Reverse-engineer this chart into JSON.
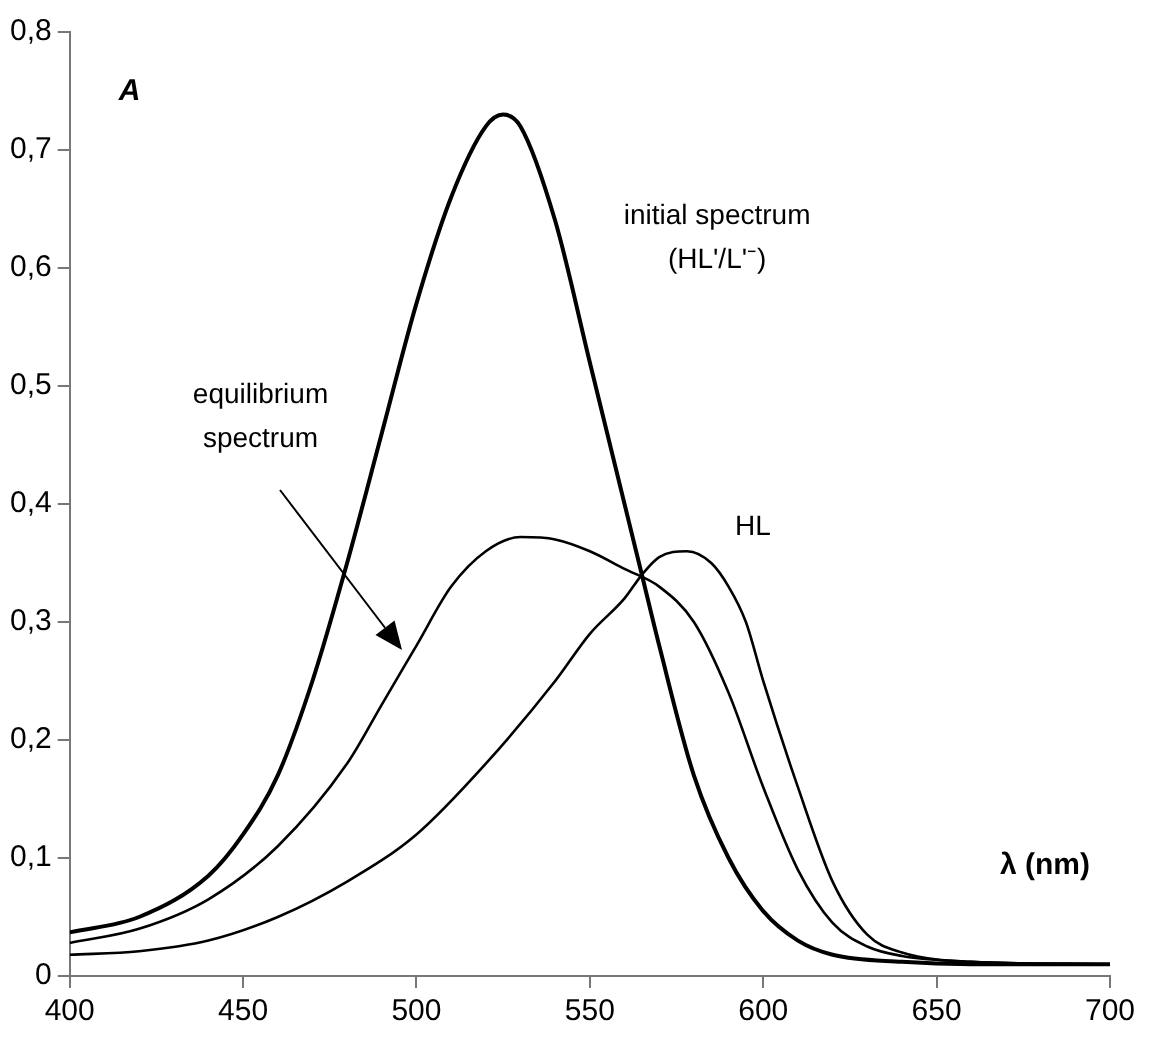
{
  "chart_data": {
    "type": "line",
    "xlabel": "λ (nm)",
    "ylabel": "A",
    "xlim": [
      400,
      700
    ],
    "xticks": [
      400,
      450,
      500,
      550,
      600,
      650,
      700
    ],
    "ylim": [
      0,
      0.8
    ],
    "yticks": [
      0,
      {
        "value": 0.1,
        "label": "0,1"
      },
      {
        "value": 0.2,
        "label": "0,2"
      },
      {
        "value": 0.3,
        "label": "0,3"
      },
      {
        "value": 0.4,
        "label": "0,4"
      },
      {
        "value": 0.5,
        "label": "0,5"
      },
      {
        "value": 0.6,
        "label": "0,6"
      },
      {
        "value": 0.7,
        "label": "0,7"
      },
      {
        "value": 0.8,
        "label": "0,8"
      }
    ],
    "grid": false,
    "legend": false,
    "marker": "none",
    "line_style": "solid",
    "series": [
      {
        "name": "initial spectrum (HL'/L'⁻)",
        "color": "#000000",
        "x": [
          400,
          420,
          440,
          450,
          460,
          470,
          480,
          490,
          500,
          510,
          520,
          525,
          530,
          540,
          550,
          560,
          565,
          570,
          580,
          590,
          600,
          610,
          620,
          640,
          660,
          700
        ],
        "values": [
          0.037,
          0.05,
          0.085,
          0.12,
          0.17,
          0.25,
          0.35,
          0.46,
          0.57,
          0.66,
          0.72,
          0.73,
          0.72,
          0.64,
          0.52,
          0.4,
          0.34,
          0.28,
          0.17,
          0.1,
          0.055,
          0.03,
          0.018,
          0.012,
          0.01,
          0.01
        ]
      },
      {
        "name": "equilibrium spectrum",
        "color": "#000000",
        "x": [
          400,
          420,
          440,
          460,
          480,
          490,
          500,
          510,
          520,
          530,
          540,
          550,
          560,
          570,
          580,
          590,
          600,
          610,
          620,
          630,
          640,
          660,
          700
        ],
        "values": [
          0.028,
          0.04,
          0.065,
          0.11,
          0.18,
          0.23,
          0.28,
          0.33,
          0.36,
          0.372,
          0.37,
          0.36,
          0.345,
          0.33,
          0.3,
          0.24,
          0.16,
          0.09,
          0.045,
          0.025,
          0.017,
          0.012,
          0.01
        ]
      },
      {
        "name": "HL",
        "color": "#000000",
        "x": [
          400,
          420,
          440,
          460,
          480,
          500,
          520,
          540,
          550,
          560,
          565,
          570,
          578,
          585,
          590,
          595,
          600,
          610,
          620,
          630,
          640,
          660,
          700
        ],
        "values": [
          0.018,
          0.021,
          0.03,
          0.05,
          0.08,
          0.12,
          0.18,
          0.25,
          0.29,
          0.32,
          0.34,
          0.355,
          0.36,
          0.35,
          0.33,
          0.3,
          0.25,
          0.16,
          0.08,
          0.035,
          0.02,
          0.012,
          0.01
        ]
      }
    ]
  }
}
